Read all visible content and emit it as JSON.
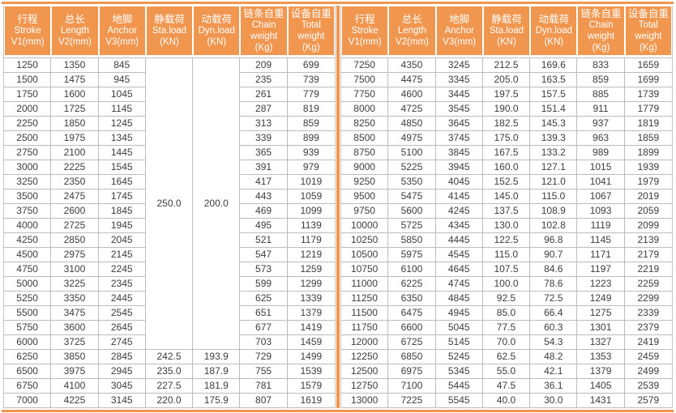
{
  "colors": {
    "accent_orange": "#F0964F",
    "border_gray": "#BDBDBD",
    "header_text": "#FFFFFF",
    "cell_text": "#3D3D3D"
  },
  "columns": [
    {
      "name": "stroke",
      "lines": [
        "行程",
        "Stroke",
        "V1(mm)"
      ]
    },
    {
      "name": "length",
      "lines": [
        "总长",
        "Length",
        "V2(mm)"
      ]
    },
    {
      "name": "anchor",
      "lines": [
        "地脚",
        "Anchor",
        "V3(mm)"
      ]
    },
    {
      "name": "static-load",
      "lines": [
        "静载荷",
        "Sta.load",
        "(KN)"
      ]
    },
    {
      "name": "dynamic-load",
      "lines": [
        "动载荷",
        "Dyn.load",
        "(KN)"
      ]
    },
    {
      "name": "chain-weight",
      "lines": [
        "链条自重",
        "Chain",
        "weight",
        "(Kg)"
      ]
    },
    {
      "name": "total-weight",
      "lines": [
        "设备自重",
        "Total",
        "weight",
        "(Kg)"
      ]
    }
  ],
  "left_table": {
    "merges": [
      {
        "row": 0,
        "col": 3,
        "rowspan": 20,
        "value": "250.0"
      },
      {
        "row": 0,
        "col": 4,
        "rowspan": 20,
        "value": "200.0"
      }
    ],
    "rows": [
      [
        "1250",
        "1350",
        "845",
        null,
        null,
        "209",
        "699"
      ],
      [
        "1500",
        "1475",
        "945",
        null,
        null,
        "235",
        "739"
      ],
      [
        "1750",
        "1600",
        "1045",
        null,
        null,
        "261",
        "779"
      ],
      [
        "2000",
        "1725",
        "1145",
        null,
        null,
        "287",
        "819"
      ],
      [
        "2250",
        "1850",
        "1245",
        null,
        null,
        "313",
        "859"
      ],
      [
        "2500",
        "1975",
        "1345",
        null,
        null,
        "339",
        "899"
      ],
      [
        "2750",
        "2100",
        "1445",
        null,
        null,
        "365",
        "939"
      ],
      [
        "3000",
        "2225",
        "1545",
        null,
        null,
        "391",
        "979"
      ],
      [
        "3250",
        "2350",
        "1645",
        null,
        null,
        "417",
        "1019"
      ],
      [
        "3500",
        "2475",
        "1745",
        null,
        null,
        "443",
        "1059"
      ],
      [
        "3750",
        "2600",
        "1845",
        null,
        null,
        "469",
        "1099"
      ],
      [
        "4000",
        "2725",
        "1945",
        null,
        null,
        "495",
        "1139"
      ],
      [
        "4250",
        "2850",
        "2045",
        null,
        null,
        "521",
        "1179"
      ],
      [
        "4500",
        "2975",
        "2145",
        null,
        null,
        "547",
        "1219"
      ],
      [
        "4750",
        "3100",
        "2245",
        null,
        null,
        "573",
        "1259"
      ],
      [
        "5000",
        "3225",
        "2345",
        null,
        null,
        "599",
        "1299"
      ],
      [
        "5250",
        "3350",
        "2445",
        null,
        null,
        "625",
        "1339"
      ],
      [
        "5500",
        "3475",
        "2545",
        null,
        null,
        "651",
        "1379"
      ],
      [
        "5750",
        "3600",
        "2645",
        null,
        null,
        "677",
        "1419"
      ],
      [
        "6000",
        "3725",
        "2745",
        null,
        null,
        "703",
        "1459"
      ],
      [
        "6250",
        "3850",
        "2845",
        "242.5",
        "193.9",
        "729",
        "1499"
      ],
      [
        "6500",
        "3975",
        "2945",
        "235.0",
        "187.9",
        "755",
        "1539"
      ],
      [
        "6750",
        "4100",
        "3045",
        "227.5",
        "181.9",
        "781",
        "1579"
      ],
      [
        "7000",
        "4225",
        "3145",
        "220.0",
        "175.9",
        "807",
        "1619"
      ]
    ]
  },
  "right_table": {
    "merges": [],
    "rows": [
      [
        "7250",
        "4350",
        "3245",
        "212.5",
        "169.6",
        "833",
        "1659"
      ],
      [
        "7500",
        "4475",
        "3345",
        "205.0",
        "163.5",
        "859",
        "1699"
      ],
      [
        "7750",
        "4600",
        "3445",
        "197.5",
        "157.5",
        "885",
        "1739"
      ],
      [
        "8000",
        "4725",
        "3545",
        "190.0",
        "151.4",
        "911",
        "1779"
      ],
      [
        "8250",
        "4850",
        "3645",
        "182.5",
        "145.3",
        "937",
        "1819"
      ],
      [
        "8500",
        "4975",
        "3745",
        "175.0",
        "139.3",
        "963",
        "1859"
      ],
      [
        "8750",
        "5100",
        "3845",
        "167.5",
        "133.2",
        "989",
        "1899"
      ],
      [
        "9000",
        "5225",
        "3945",
        "160.0",
        "127.1",
        "1015",
        "1939"
      ],
      [
        "9250",
        "5350",
        "4045",
        "152.5",
        "121.0",
        "1041",
        "1979"
      ],
      [
        "9500",
        "5475",
        "4145",
        "145.0",
        "115.0",
        "1067",
        "2019"
      ],
      [
        "9750",
        "5600",
        "4245",
        "137.5",
        "108.9",
        "1093",
        "2059"
      ],
      [
        "10000",
        "5725",
        "4345",
        "130.0",
        "102.8",
        "1119",
        "2099"
      ],
      [
        "10250",
        "5850",
        "4445",
        "122.5",
        "96.8",
        "1145",
        "2139"
      ],
      [
        "10500",
        "5975",
        "4545",
        "115.0",
        "90.7",
        "1171",
        "2179"
      ],
      [
        "10750",
        "6100",
        "4645",
        "107.5",
        "84.6",
        "1197",
        "2219"
      ],
      [
        "11000",
        "6225",
        "4745",
        "100.0",
        "78.6",
        "1223",
        "2259"
      ],
      [
        "11250",
        "6350",
        "4845",
        "92.5",
        "72.5",
        "1249",
        "2299"
      ],
      [
        "11500",
        "6475",
        "4945",
        "85.0",
        "66.4",
        "1275",
        "2339"
      ],
      [
        "11750",
        "6600",
        "5045",
        "77.5",
        "60.3",
        "1301",
        "2379"
      ],
      [
        "12000",
        "6725",
        "5145",
        "70.0",
        "54.3",
        "1327",
        "2419"
      ],
      [
        "12250",
        "6850",
        "5245",
        "62.5",
        "48.2",
        "1353",
        "2459"
      ],
      [
        "12500",
        "6975",
        "5345",
        "55.0",
        "42.1",
        "1379",
        "2499"
      ],
      [
        "12750",
        "7100",
        "5445",
        "47.5",
        "36.1",
        "1405",
        "2539"
      ],
      [
        "13000",
        "7225",
        "5545",
        "40.0",
        "30.0",
        "1431",
        "2579"
      ]
    ]
  }
}
